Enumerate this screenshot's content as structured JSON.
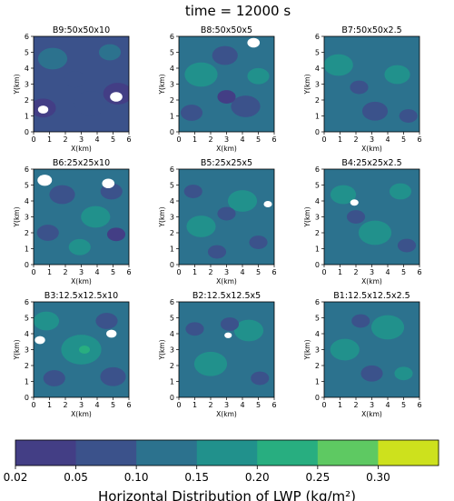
{
  "figure": {
    "title": "time = 12000 s"
  },
  "chart_data": {
    "type": "heatmap",
    "xlabel": "X(km)",
    "ylabel": "Y(km)",
    "xlim": [
      0,
      6
    ],
    "ylim": [
      0,
      6
    ],
    "ticks": [
      "0",
      "1",
      "2",
      "3",
      "4",
      "5",
      "6"
    ],
    "panels": [
      {
        "title": "B9:50x50x10",
        "base_level": 1,
        "spots": [
          [
            1.2,
            4.6,
            0.8,
            2
          ],
          [
            3.6,
            1.8,
            0.9,
            1
          ],
          [
            0.6,
            1.5,
            0.7,
            0
          ],
          [
            5.3,
            2.4,
            0.8,
            0
          ],
          [
            2.6,
            3.3,
            0.6,
            1
          ],
          [
            4.8,
            5.0,
            0.6,
            2
          ]
        ],
        "holes": [
          [
            5.2,
            2.2,
            0.3
          ],
          [
            0.6,
            1.4,
            0.25
          ]
        ]
      },
      {
        "title": "B8:50x50x5",
        "base_level": 2,
        "spots": [
          [
            1.4,
            3.6,
            0.9,
            3
          ],
          [
            4.2,
            1.6,
            0.8,
            1
          ],
          [
            2.9,
            4.8,
            0.7,
            1
          ],
          [
            0.8,
            1.2,
            0.6,
            1
          ],
          [
            3.0,
            2.2,
            0.5,
            0
          ],
          [
            5.0,
            3.5,
            0.6,
            3
          ]
        ],
        "holes": [
          [
            4.7,
            5.6,
            0.3
          ]
        ]
      },
      {
        "title": "B7:50x50x2.5",
        "base_level": 2,
        "spots": [
          [
            0.9,
            4.2,
            0.8,
            3
          ],
          [
            3.2,
            1.3,
            0.7,
            1
          ],
          [
            4.6,
            3.6,
            0.7,
            3
          ],
          [
            2.2,
            2.8,
            0.5,
            1
          ],
          [
            5.3,
            1.0,
            0.5,
            1
          ]
        ],
        "holes": []
      },
      {
        "title": "B6:25x25x10",
        "base_level": 2,
        "spots": [
          [
            1.8,
            4.4,
            0.7,
            1
          ],
          [
            3.9,
            3.0,
            0.8,
            3
          ],
          [
            0.9,
            2.0,
            0.6,
            1
          ],
          [
            4.9,
            4.6,
            0.6,
            1
          ],
          [
            2.9,
            1.1,
            0.6,
            3
          ],
          [
            5.2,
            1.9,
            0.5,
            0
          ]
        ],
        "holes": [
          [
            0.7,
            5.3,
            0.35
          ],
          [
            4.7,
            5.1,
            0.3
          ]
        ]
      },
      {
        "title": "B5:25x25x5",
        "base_level": 2,
        "spots": [
          [
            1.4,
            2.4,
            0.8,
            3
          ],
          [
            4.0,
            4.0,
            0.8,
            3
          ],
          [
            3.0,
            3.2,
            0.5,
            1
          ],
          [
            0.9,
            4.6,
            0.5,
            1
          ],
          [
            5.0,
            1.4,
            0.5,
            1
          ],
          [
            2.4,
            0.8,
            0.5,
            1
          ]
        ],
        "holes": [
          [
            5.6,
            3.8,
            0.2
          ]
        ]
      },
      {
        "title": "B4:25x25x2.5",
        "base_level": 2,
        "spots": [
          [
            3.2,
            2.0,
            0.9,
            3
          ],
          [
            1.2,
            4.4,
            0.7,
            3
          ],
          [
            4.8,
            4.6,
            0.6,
            3
          ],
          [
            2.0,
            3.0,
            0.5,
            1
          ],
          [
            5.2,
            1.2,
            0.5,
            1
          ]
        ],
        "holes": [
          [
            1.9,
            3.9,
            0.2
          ]
        ]
      },
      {
        "title": "B3:12.5x12.5x10",
        "base_level": 2,
        "spots": [
          [
            3.0,
            3.0,
            1.1,
            3
          ],
          [
            0.8,
            4.8,
            0.7,
            3
          ],
          [
            5.0,
            1.3,
            0.7,
            1
          ],
          [
            3.2,
            3.0,
            0.3,
            4
          ],
          [
            1.3,
            1.2,
            0.6,
            1
          ],
          [
            4.6,
            4.8,
            0.6,
            1
          ]
        ],
        "holes": [
          [
            0.4,
            3.6,
            0.25
          ],
          [
            4.9,
            4.0,
            0.25
          ]
        ]
      },
      {
        "title": "B2:12.5x12.5x5",
        "base_level": 2,
        "spots": [
          [
            2.0,
            2.1,
            0.9,
            3
          ],
          [
            4.4,
            4.2,
            0.8,
            3
          ],
          [
            3.2,
            4.6,
            0.5,
            1
          ],
          [
            1.0,
            4.3,
            0.5,
            1
          ],
          [
            5.1,
            1.2,
            0.5,
            1
          ]
        ],
        "holes": [
          [
            3.1,
            3.9,
            0.18
          ]
        ]
      },
      {
        "title": "B1:12.5x12.5x2.5",
        "base_level": 2,
        "spots": [
          [
            4.0,
            4.4,
            0.9,
            3
          ],
          [
            1.3,
            3.0,
            0.8,
            3
          ],
          [
            3.0,
            1.5,
            0.6,
            1
          ],
          [
            2.3,
            4.8,
            0.5,
            1
          ],
          [
            5.0,
            1.5,
            0.5,
            3
          ]
        ],
        "holes": []
      }
    ],
    "colorbar": {
      "label": "Horizontal Distribution of LWP (kg/m²)",
      "levels": [
        "0.02",
        "0.05",
        "0.10",
        "0.15",
        "0.20",
        "0.25",
        "0.30"
      ],
      "colors": [
        "#433e85",
        "#3b528b",
        "#2c728e",
        "#21918c",
        "#28ae80",
        "#5ec962",
        "#cde11d"
      ]
    }
  }
}
